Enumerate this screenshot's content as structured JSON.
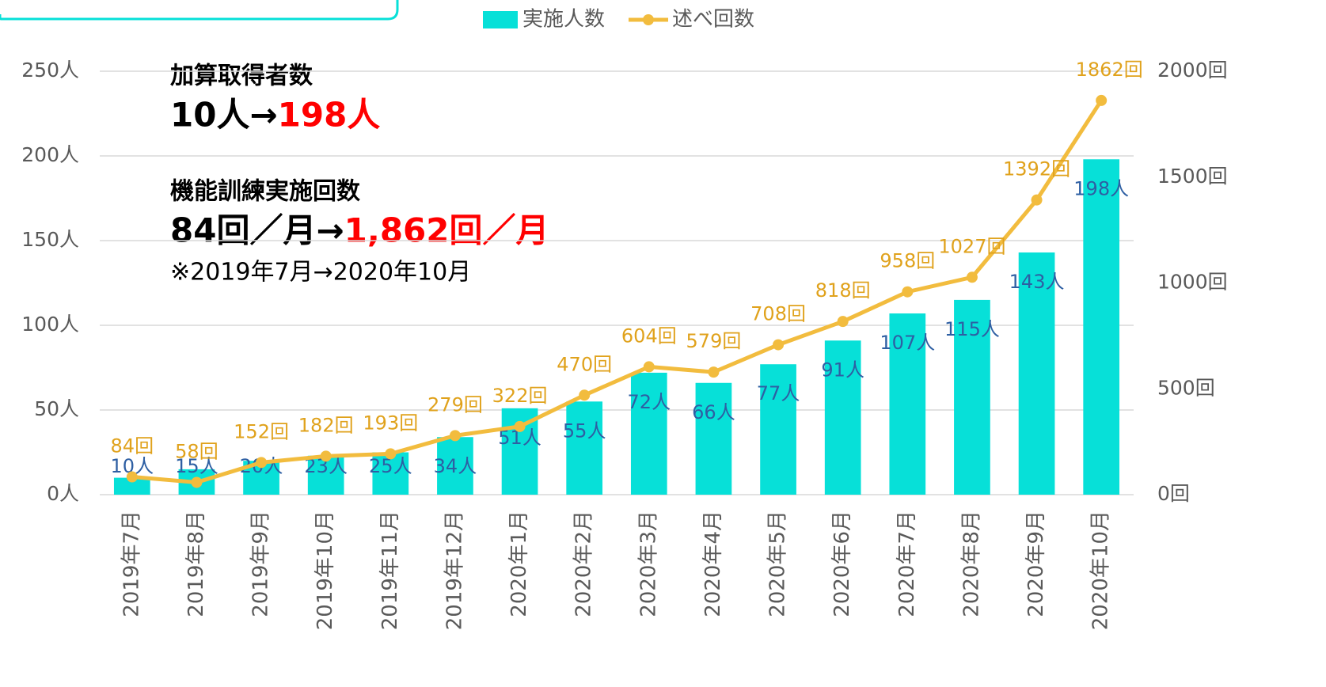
{
  "chart_data": {
    "type": "bar_line",
    "categories": [
      "2019年7月",
      "2019年8月",
      "2019年9月",
      "2019年10月",
      "2019年11月",
      "2019年12月",
      "2020年1月",
      "2020年2月",
      "2020年3月",
      "2020年4月",
      "2020年5月",
      "2020年6月",
      "2020年7月",
      "2020年8月",
      "2020年9月",
      "2020年10月"
    ],
    "series": [
      {
        "name": "実施人数",
        "color": "#07e0d8",
        "label_color": "#2e5fa3",
        "values": [
          10,
          15,
          20,
          23,
          25,
          34,
          51,
          55,
          72,
          66,
          77,
          91,
          107,
          115,
          143,
          198
        ],
        "value_labels": [
          "10人",
          "15人",
          "20人",
          "23人",
          "25人",
          "34人",
          "51人",
          "55人",
          "72人",
          "66人",
          "77人",
          "91人",
          "107人",
          "115人",
          "143人",
          "198人"
        ]
      },
      {
        "name": "述べ回数",
        "color": "#f2bc3e",
        "label_color": "#e0a21c",
        "axis": "y2",
        "values": [
          84,
          58,
          152,
          182,
          193,
          279,
          322,
          470,
          604,
          579,
          708,
          818,
          958,
          1027,
          1392,
          1862
        ],
        "value_labels": [
          "84回",
          "58回",
          "152回",
          "182回",
          "193回",
          "279回",
          "322回",
          "470回",
          "604回",
          "579回",
          "708回",
          "818回",
          "958回",
          "1027回",
          "1392回",
          "1862回"
        ]
      }
    ],
    "ylim": [
      0,
      250
    ],
    "yticks": [
      {
        "value": 0,
        "label": "0人"
      },
      {
        "value": 50,
        "label": "50人"
      },
      {
        "value": 100,
        "label": "100人"
      },
      {
        "value": 150,
        "label": "150人"
      },
      {
        "value": 200,
        "label": "200人"
      },
      {
        "value": 250,
        "label": "250人"
      }
    ],
    "y2lim": [
      0,
      2000
    ],
    "y2ticks": [
      {
        "value": 0,
        "label": "0回"
      },
      {
        "value": 500,
        "label": "500回"
      },
      {
        "value": 1000,
        "label": "1000回"
      },
      {
        "value": 1500,
        "label": "1500回"
      },
      {
        "value": 2000,
        "label": "2000回"
      }
    ],
    "grid": true,
    "legend": "top",
    "annotations": {
      "heading1": "加算取得者数",
      "line1a": "10人→",
      "line1b": "198人",
      "heading2": "機能訓練実施回数",
      "line2a": "84回／月→",
      "line2b": "1,862回／月",
      "note": "※2019年7月→2020年10月"
    }
  }
}
